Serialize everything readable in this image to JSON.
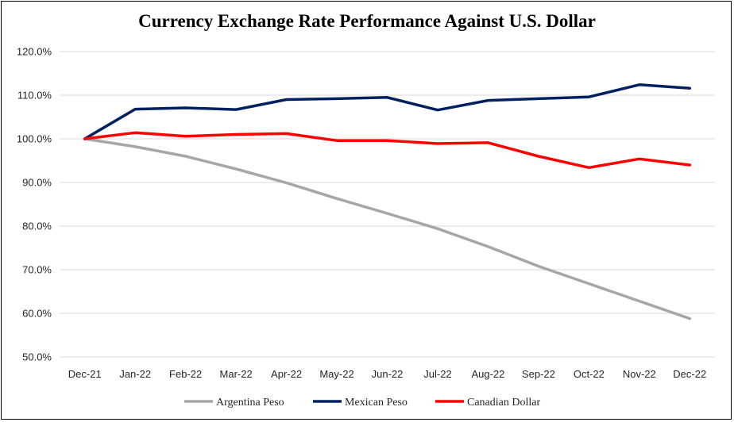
{
  "chart_data": {
    "type": "line",
    "title": "Currency Exchange Rate Performance Against U.S. Dollar",
    "xlabel": "",
    "ylabel": "",
    "categories": [
      "Dec-21",
      "Jan-22",
      "Feb-22",
      "Mar-22",
      "Apr-22",
      "May-22",
      "Jun-22",
      "Jul-22",
      "Aug-22",
      "Sep-22",
      "Oct-22",
      "Nov-22",
      "Dec-22"
    ],
    "ylim": [
      50,
      120
    ],
    "yticks": [
      50,
      60,
      70,
      80,
      90,
      100,
      110,
      120
    ],
    "ytick_labels": [
      "50.0%",
      "60.0%",
      "70.0%",
      "80.0%",
      "90.0%",
      "100.0%",
      "110.0%",
      "120.0%"
    ],
    "grid": "horizontal",
    "legend_position": "bottom",
    "series": [
      {
        "name": "Argentina Peso",
        "color": "#A6A6A6",
        "values": [
          100,
          98.2,
          96.0,
          93.1,
          89.9,
          86.3,
          82.9,
          79.4,
          75.3,
          70.8,
          66.8,
          62.8,
          58.8
        ]
      },
      {
        "name": "Mexican Peso",
        "color": "#002060",
        "values": [
          100,
          106.8,
          107.1,
          106.7,
          109.0,
          109.2,
          109.5,
          106.6,
          108.8,
          109.2,
          109.6,
          112.4,
          111.6
        ]
      },
      {
        "name": "Canadian Dollar",
        "color": "#FF0000",
        "values": [
          100,
          101.4,
          100.6,
          101.0,
          101.2,
          99.6,
          99.6,
          98.9,
          99.1,
          96.0,
          93.4,
          95.4,
          94.0
        ]
      }
    ]
  }
}
